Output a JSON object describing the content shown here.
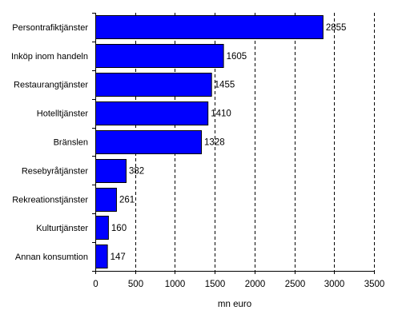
{
  "chart_data": {
    "type": "bar",
    "orientation": "horizontal",
    "categories": [
      "Persontrafiktjänster",
      "Inköp inom handeln",
      "Restaurangtjänster",
      "Hotelltjänster",
      "Bränslen",
      "Resebyråtjänster",
      "Rekreationstjänster",
      "Kulturtjänster",
      "Annan konsumtion"
    ],
    "values": [
      2855,
      1605,
      1455,
      1410,
      1328,
      382,
      261,
      160,
      147
    ],
    "data_labels": [
      "2855",
      "1605",
      "1455",
      "1410",
      "1328",
      "382",
      "261",
      "160",
      "147"
    ],
    "xlabel": "mn euro",
    "xlim": [
      0,
      3500
    ],
    "xticks": [
      0,
      500,
      1000,
      1500,
      2000,
      2500,
      3000,
      3500
    ],
    "grid": "vertical dashed",
    "bar_color": "#0000ff"
  }
}
